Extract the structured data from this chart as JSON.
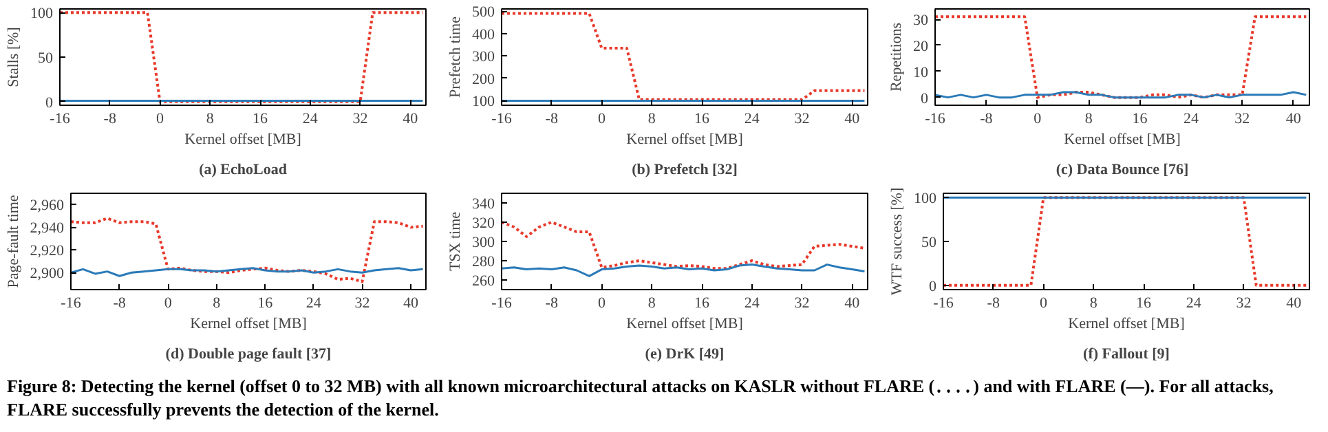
{
  "chart_data": [
    {
      "type": "line",
      "title": "(a) EchoLoad",
      "xlabel": "Kernel offset [MB]",
      "ylabel": "Stalls [%]",
      "xlim": [
        -16,
        42.5
      ],
      "xticks": [
        -16,
        -8,
        0,
        8,
        16,
        24,
        32,
        40
      ],
      "ylim": [
        -4,
        104
      ],
      "yticks": [
        0,
        50,
        100
      ],
      "grid": false,
      "annotations": [
        "Figure 8: Detecting the kernel (offset 0 to 32 MB) with all known microarchitectural attacks on KASLR without FLARE (․․․․) and with FLARE (—). For all attacks, FLARE successfully prevents the detection of the kernel."
      ],
      "x": [
        -16,
        -14,
        -12,
        -10,
        -8,
        -6,
        -4,
        -2,
        0,
        2,
        4,
        6,
        8,
        10,
        12,
        14,
        16,
        18,
        20,
        22,
        24,
        26,
        28,
        30,
        32,
        34,
        36,
        38,
        40,
        42
      ],
      "series": [
        {
          "color": "#e8392a",
          "line_style": "dotted",
          "values": [
            100,
            100,
            100,
            100,
            100,
            100,
            100,
            100,
            0,
            0,
            0,
            0,
            0,
            0,
            0,
            0,
            0,
            0,
            0,
            0,
            0,
            0,
            0,
            0,
            0,
            100,
            100,
            100,
            100,
            100
          ]
        },
        {
          "color": "#2a7ab8",
          "line_style": "solid",
          "values": [
            1,
            1,
            1,
            1,
            1,
            1,
            1,
            1,
            1,
            1,
            1,
            1,
            1,
            1,
            1,
            1,
            1,
            1,
            1,
            1,
            1,
            1,
            1,
            1,
            1,
            1,
            1,
            1,
            1,
            1
          ]
        }
      ]
    },
    {
      "type": "line",
      "title": "(b) Prefetch [32]",
      "xlabel": "Kernel offset [MB]",
      "ylabel": "Prefetch time",
      "xlim": [
        -16,
        42.5
      ],
      "xticks": [
        -16,
        -8,
        0,
        8,
        16,
        24,
        32,
        40
      ],
      "ylim": [
        80,
        510
      ],
      "yticks": [
        100,
        200,
        300,
        400,
        500
      ],
      "grid": false,
      "x": [
        -16,
        -14,
        -12,
        -10,
        -8,
        -6,
        -4,
        -2,
        0,
        2,
        4,
        6,
        8,
        10,
        12,
        14,
        16,
        18,
        20,
        22,
        24,
        26,
        28,
        30,
        32,
        34,
        36,
        38,
        40,
        42
      ],
      "series": [
        {
          "color": "#e8392a",
          "line_style": "dotted",
          "values": [
            490,
            490,
            490,
            490,
            490,
            490,
            490,
            490,
            335,
            335,
            335,
            105,
            105,
            105,
            105,
            105,
            105,
            105,
            105,
            105,
            105,
            105,
            105,
            105,
            105,
            145,
            145,
            145,
            145,
            145
          ]
        },
        {
          "color": "#2a7ab8",
          "line_style": "solid",
          "values": [
            100,
            100,
            100,
            100,
            100,
            100,
            100,
            100,
            100,
            100,
            100,
            100,
            100,
            100,
            100,
            100,
            100,
            100,
            100,
            100,
            100,
            100,
            100,
            100,
            100,
            100,
            100,
            100,
            100,
            100
          ]
        }
      ]
    },
    {
      "type": "line",
      "title": "(c) Data Bounce [76]",
      "xlabel": "Kernel offset [MB]",
      "ylabel": "Repetitions",
      "xlim": [
        -16,
        42.5
      ],
      "xticks": [
        -16,
        -8,
        0,
        8,
        16,
        24,
        32,
        40
      ],
      "ylim": [
        -3,
        34
      ],
      "yticks": [
        0,
        10,
        20,
        30
      ],
      "grid": false,
      "x": [
        -16,
        -14,
        -12,
        -10,
        -8,
        -6,
        -4,
        -2,
        0,
        2,
        4,
        6,
        8,
        10,
        12,
        14,
        16,
        18,
        20,
        22,
        24,
        26,
        28,
        30,
        32,
        34,
        36,
        38,
        40,
        42
      ],
      "series": [
        {
          "color": "#e8392a",
          "line_style": "dotted",
          "values": [
            31,
            31,
            31,
            31,
            31,
            31,
            31,
            31,
            0,
            1,
            1,
            2,
            2,
            1,
            0,
            0,
            0,
            1,
            1,
            0,
            1,
            0,
            1,
            1,
            1,
            31,
            31,
            31,
            31,
            31
          ]
        },
        {
          "color": "#2a7ab8",
          "line_style": "solid",
          "values": [
            1,
            0,
            1,
            0,
            1,
            0,
            0,
            1,
            1,
            1,
            2,
            2,
            1,
            1,
            0,
            0,
            0,
            0,
            0,
            1,
            1,
            0,
            1,
            0,
            1,
            1,
            1,
            1,
            2,
            1
          ]
        }
      ]
    },
    {
      "type": "line",
      "title": "(d) Double page fault [37]",
      "xlabel": "Kernel offset [MB]",
      "ylabel": "Page-fault time",
      "xlim": [
        -16,
        42.5
      ],
      "xticks": [
        -16,
        -8,
        0,
        8,
        16,
        24,
        32,
        40
      ],
      "ylim": [
        2885,
        2970
      ],
      "yticks": [
        {
          "value": 2900,
          "label": "2,900"
        },
        {
          "value": 2920,
          "label": "2,920"
        },
        {
          "value": 2940,
          "label": "2,940"
        },
        {
          "value": 2960,
          "label": "2,960"
        }
      ],
      "grid": false,
      "x": [
        -16,
        -14,
        -12,
        -10,
        -8,
        -6,
        -4,
        -2,
        0,
        2,
        4,
        6,
        8,
        10,
        12,
        14,
        16,
        18,
        20,
        22,
        24,
        26,
        28,
        30,
        32,
        34,
        36,
        38,
        40,
        42
      ],
      "series": [
        {
          "color": "#e8392a",
          "line_style": "dotted",
          "values": [
            2945,
            2944,
            2944,
            2948,
            2944,
            2945,
            2945,
            2943,
            2903,
            2904,
            2902,
            2901,
            2901,
            2900,
            2902,
            2903,
            2904,
            2902,
            2901,
            2902,
            2901,
            2899,
            2894,
            2895,
            2892,
            2945,
            2945,
            2944,
            2940,
            2941
          ]
        },
        {
          "color": "#2a7ab8",
          "line_style": "solid",
          "values": [
            2900,
            2903,
            2899,
            2901,
            2897,
            2900,
            2901,
            2902,
            2903,
            2903,
            2902,
            2902,
            2901,
            2902,
            2903,
            2904,
            2902,
            2901,
            2901,
            2902,
            2900,
            2901,
            2903,
            2901,
            2900,
            2902,
            2903,
            2904,
            2902,
            2903
          ]
        }
      ]
    },
    {
      "type": "line",
      "title": "(e) DrK [49]",
      "xlabel": "Kernel offset [MB]",
      "ylabel": "TSX time",
      "xlim": [
        -16,
        42.5
      ],
      "xticks": [
        -16,
        -8,
        0,
        8,
        16,
        24,
        32,
        40
      ],
      "ylim": [
        250,
        350
      ],
      "yticks": [
        260,
        280,
        300,
        320,
        340
      ],
      "grid": false,
      "x": [
        -16,
        -14,
        -12,
        -10,
        -8,
        -6,
        -4,
        -2,
        0,
        2,
        4,
        6,
        8,
        10,
        12,
        14,
        16,
        18,
        20,
        22,
        24,
        26,
        28,
        30,
        32,
        34,
        36,
        38,
        40,
        42
      ],
      "series": [
        {
          "color": "#e8392a",
          "line_style": "dotted",
          "values": [
            320,
            315,
            305,
            315,
            320,
            315,
            310,
            310,
            273,
            275,
            278,
            280,
            278,
            276,
            274,
            275,
            274,
            272,
            272,
            276,
            280,
            276,
            274,
            275,
            276,
            295,
            296,
            297,
            295,
            293
          ]
        },
        {
          "color": "#2a7ab8",
          "line_style": "solid",
          "values": [
            272,
            273,
            271,
            272,
            271,
            273,
            270,
            264,
            271,
            272,
            274,
            275,
            274,
            272,
            273,
            271,
            272,
            270,
            271,
            275,
            276,
            274,
            272,
            271,
            270,
            270,
            276,
            273,
            271,
            269
          ]
        }
      ]
    },
    {
      "type": "line",
      "title": "(f) Fallout [9]",
      "xlabel": "Kernel offset [MB]",
      "ylabel": "WTF success [%]",
      "xlim": [
        -16,
        42.5
      ],
      "xticks": [
        -16,
        -8,
        0,
        8,
        16,
        24,
        32,
        40
      ],
      "ylim": [
        -5,
        105
      ],
      "yticks": [
        0,
        50,
        100
      ],
      "grid": false,
      "x": [
        -16,
        -14,
        -12,
        -10,
        -8,
        -6,
        -4,
        -2,
        0,
        2,
        4,
        6,
        8,
        10,
        12,
        14,
        16,
        18,
        20,
        22,
        24,
        26,
        28,
        30,
        32,
        34,
        36,
        38,
        40,
        42
      ],
      "series": [
        {
          "color": "#e8392a",
          "line_style": "dotted",
          "values": [
            0,
            0,
            0,
            0,
            0,
            0,
            0,
            0,
            100,
            100,
            100,
            100,
            100,
            100,
            100,
            100,
            100,
            100,
            100,
            100,
            100,
            100,
            100,
            100,
            100,
            0,
            0,
            0,
            0,
            0
          ]
        },
        {
          "color": "#2a7ab8",
          "line_style": "solid",
          "values": [
            100,
            100,
            100,
            100,
            100,
            100,
            100,
            100,
            100,
            100,
            100,
            100,
            100,
            100,
            100,
            100,
            100,
            100,
            100,
            100,
            100,
            100,
            100,
            100,
            100,
            100,
            100,
            100,
            100,
            100
          ]
        }
      ]
    }
  ]
}
